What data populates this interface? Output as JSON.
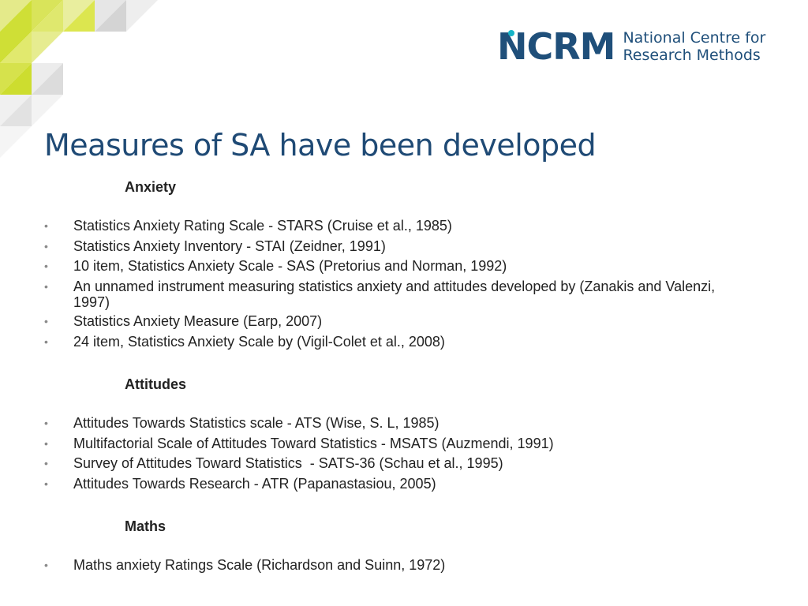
{
  "logo": {
    "mark": "NCRM",
    "line1": "National Centre for",
    "line2": "Research Methods"
  },
  "title": "Measures of SA have been developed",
  "sections": [
    {
      "heading": "Anxiety",
      "items": [
        "Statistics Anxiety Rating Scale - STARS (Cruise et al., 1985)",
        "Statistics Anxiety Inventory - STAI (Zeidner, 1991)",
        "10 item, Statistics Anxiety Scale - SAS (Pretorius and Norman, 1992)",
        "An unnamed instrument measuring statistics anxiety and attitudes developed by (Zanakis and Valenzi, 1997)",
        "Statistics Anxiety Measure (Earp, 2007)",
        "24 item, Statistics Anxiety Scale by (Vigil-Colet et al., 2008)"
      ]
    },
    {
      "heading": "Attitudes",
      "items": [
        "Attitudes Towards Statistics scale - ATS (Wise, S. L, 1985)",
        "Multifactorial Scale of Attitudes Toward Statistics - MSATS (Auzmendi, 1991)",
        "Survey of Attitudes Toward Statistics  - SATS-36 (Schau et al., 1995)",
        "Attitudes Towards Research - ATR (Papanastasiou, 2005)"
      ]
    },
    {
      "heading": "Maths",
      "items": [
        "Maths anxiety Ratings Scale (Richardson and Suinn, 1972)"
      ]
    }
  ],
  "bullet_glyph": "•",
  "colors": {
    "title": "#1f4a75",
    "accent_lime": "#c8dc2a",
    "accent_grey": "#d9d9d9"
  }
}
